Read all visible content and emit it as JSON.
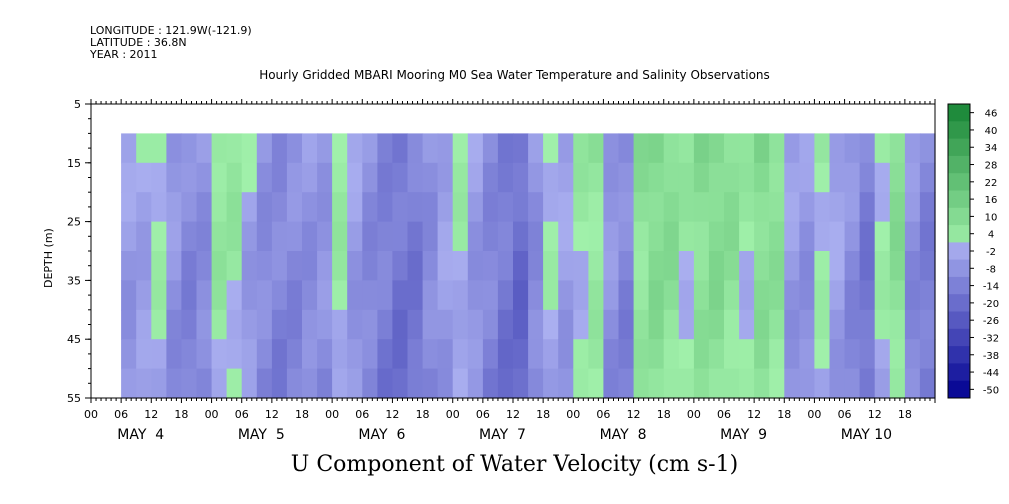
{
  "header": {
    "longitude": "LONGITUDE : 121.9W(-121.9)",
    "latitude": "LATITUDE : 36.8N",
    "year": "YEAR : 2011"
  },
  "chart_data": {
    "type": "heatmap",
    "title": "Hourly Gridded MBARI Mooring M0 Sea Water Temperature and Salinity Observations",
    "variable_label": "U Component of Water Velocity (cm s-1)",
    "ylabel": "DEPTH (m)",
    "ylim": [
      55,
      5
    ],
    "y_ticks": [
      5,
      15,
      25,
      35,
      45,
      55
    ],
    "data_depth_range": [
      10,
      55
    ],
    "x_hour_ticks": [
      "00",
      "06",
      "12",
      "18",
      "00",
      "06",
      "12",
      "18",
      "00",
      "06",
      "12",
      "18",
      "00",
      "06",
      "12",
      "18",
      "00",
      "06",
      "12",
      "18",
      "00",
      "06",
      "12",
      "18",
      "00",
      "06",
      "12",
      "18"
    ],
    "x_day_labels": [
      "MAY  4",
      "MAY  5",
      "MAY  6",
      "MAY  7",
      "MAY  8",
      "MAY  9",
      "MAY 10"
    ],
    "x_range_hours": [
      0,
      168
    ],
    "data_start_hour": 6,
    "colorbar": {
      "range": [
        -50,
        50
      ],
      "tick_labels": [
        "46",
        "40",
        "34",
        "28",
        "22",
        "16",
        "10",
        "4",
        "-2",
        "-8",
        "-14",
        "-20",
        "-26",
        "-32",
        "-38",
        "-44",
        "-50"
      ]
    },
    "field_profile": {
      "hours": [
        6,
        9,
        12,
        15,
        18,
        21,
        24,
        27,
        30,
        33,
        36,
        39,
        42,
        45,
        48,
        51,
        54,
        57,
        60,
        63,
        66,
        69,
        72,
        75,
        78,
        81,
        84,
        87,
        90,
        93,
        96,
        99,
        102,
        105,
        108,
        111,
        114,
        117,
        120,
        123,
        126,
        129,
        132,
        135,
        138,
        141,
        144,
        147,
        150,
        153,
        156,
        159,
        162,
        165,
        168
      ],
      "u_values": [
        -4,
        -2,
        3,
        -6,
        -10,
        -8,
        6,
        5,
        -3,
        -8,
        -10,
        -9,
        -7,
        -6,
        4,
        -4,
        -9,
        -12,
        -15,
        -14,
        -8,
        -3,
        2,
        -5,
        -10,
        -14,
        -18,
        -8,
        2,
        -3,
        3,
        6,
        -6,
        -10,
        8,
        12,
        10,
        4,
        10,
        12,
        9,
        3,
        11,
        9,
        -4,
        -6,
        3,
        -2,
        -8,
        -14,
        3,
        10,
        -8,
        -12,
        0
      ]
    }
  }
}
